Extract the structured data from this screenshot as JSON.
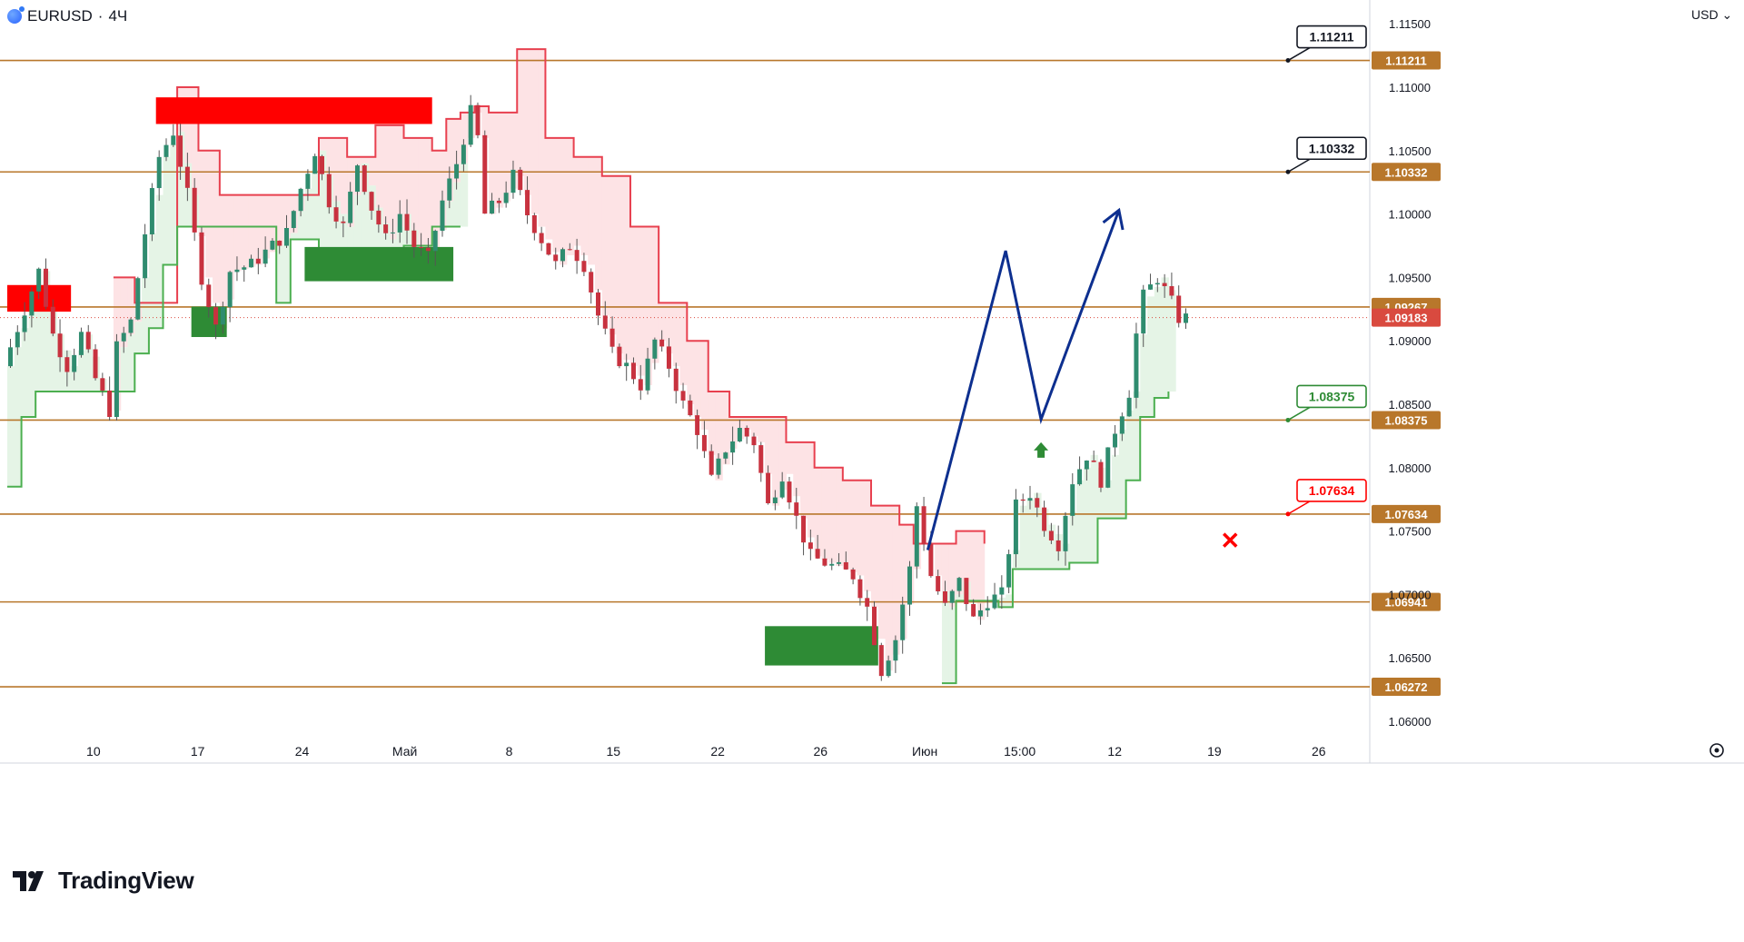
{
  "header": {
    "symbol": "EURUSD",
    "separator": "·",
    "timeframe": "4Ч"
  },
  "currency_menu": "USD",
  "logo_text": "TradingView",
  "settings_icon": "gear-icon",
  "colors": {
    "supply_zone": "#ff0000",
    "demand_zone": "#2e8b35",
    "resistance_step": "#e8404f",
    "support_step": "#4caf50",
    "level_line": "#b8772b",
    "projection": "#0d2f8f",
    "up_candle": "#26a69a",
    "down_candle": "#ef5350",
    "price_tag": "#d94a3f",
    "target_cross": "#ff0000",
    "entry_arrow": "#2e8b35"
  },
  "chart_data": {
    "type": "candlestick",
    "symbol": "EURUSD",
    "timeframe": "4Ч",
    "y_axis": {
      "currency": "USD",
      "range": [
        1.0585,
        1.1155
      ],
      "ticks": [
        1.115,
        1.11,
        1.105,
        1.1,
        1.095,
        1.09,
        1.085,
        1.08,
        1.075,
        1.07,
        1.065,
        1.06
      ],
      "tick_labels": [
        "1.11500",
        "1.11000",
        "1.10500",
        "1.10000",
        "1.09500",
        "1.09000",
        "1.08500",
        "1.08000",
        "1.07500",
        "1.07000",
        "1.06500",
        "1.06000"
      ]
    },
    "x_axis": {
      "labels": [
        "10",
        "17",
        "24",
        "Май",
        "8",
        "15",
        "22",
        "26",
        "Июн",
        "15:00",
        "12",
        "19",
        "26"
      ]
    },
    "grid": false,
    "levels": [
      {
        "value": 1.11211,
        "label": "1.11211",
        "callout": "1.11211",
        "callout_color": "#131722"
      },
      {
        "value": 1.10332,
        "label": "1.10332",
        "callout": "1.10332",
        "callout_color": "#131722"
      },
      {
        "value": 1.09267,
        "label": "1.09267"
      },
      {
        "value": 1.08375,
        "label": "1.08375",
        "callout": "1.08375",
        "callout_color": "#2e8b35"
      },
      {
        "value": 1.07634,
        "label": "1.07634",
        "callout": "1.07634",
        "callout_color": "#ff0000"
      },
      {
        "value": 1.06941,
        "label": "1.06941"
      },
      {
        "value": 1.06272,
        "label": "1.06272"
      }
    ],
    "current_price": {
      "value": 1.09183,
      "label": "1.09183"
    },
    "price_path": [
      [
        0,
        1.088
      ],
      [
        3,
        1.0925
      ],
      [
        5,
        1.0955
      ],
      [
        7,
        1.0905
      ],
      [
        9,
        1.088
      ],
      [
        11,
        1.0905
      ],
      [
        13,
        1.087
      ],
      [
        15,
        1.0845
      ],
      [
        16,
        1.0895
      ],
      [
        18,
        1.0915
      ],
      [
        20,
        1.0985
      ],
      [
        22,
        1.1045
      ],
      [
        24,
        1.1065
      ],
      [
        26,
        1.1015
      ],
      [
        28,
        1.095
      ],
      [
        30,
        1.091
      ],
      [
        32,
        1.0955
      ],
      [
        35,
        1.096
      ],
      [
        38,
        1.0975
      ],
      [
        40,
        1.0985
      ],
      [
        42,
        1.102
      ],
      [
        44,
        1.105
      ],
      [
        46,
        1.101
      ],
      [
        48,
        1.099
      ],
      [
        50,
        1.104
      ],
      [
        52,
        1.1005
      ],
      [
        54,
        1.098
      ],
      [
        56,
        1.1
      ],
      [
        58,
        1.0975
      ],
      [
        60,
        1.0965
      ],
      [
        62,
        1.101
      ],
      [
        64,
        1.104
      ],
      [
        66,
        1.108
      ],
      [
        67,
        1.106
      ],
      [
        68,
        1.1
      ],
      [
        70,
        1.101
      ],
      [
        72,
        1.103
      ],
      [
        74,
        1.1
      ],
      [
        76,
        1.098
      ],
      [
        78,
        1.096
      ],
      [
        80,
        1.0975
      ],
      [
        82,
        1.096
      ],
      [
        84,
        1.092
      ],
      [
        86,
        1.089
      ],
      [
        88,
        1.088
      ],
      [
        90,
        1.0865
      ],
      [
        92,
        1.09
      ],
      [
        94,
        1.088
      ],
      [
        96,
        1.085
      ],
      [
        98,
        1.083
      ],
      [
        100,
        1.079
      ],
      [
        102,
        1.0815
      ],
      [
        104,
        1.083
      ],
      [
        106,
        1.082
      ],
      [
        108,
        1.077
      ],
      [
        110,
        1.0795
      ],
      [
        112,
        1.076
      ],
      [
        114,
        1.073
      ],
      [
        116,
        1.0725
      ],
      [
        118,
        1.072
      ],
      [
        120,
        1.0715
      ],
      [
        122,
        1.069
      ],
      [
        124,
        1.064
      ],
      [
        126,
        1.0665
      ],
      [
        128,
        1.072
      ],
      [
        129,
        1.077
      ],
      [
        131,
        1.0715
      ],
      [
        133,
        1.069
      ],
      [
        135,
        1.071
      ],
      [
        137,
        1.068
      ],
      [
        139,
        1.0695
      ],
      [
        141,
        1.07
      ],
      [
        143,
        1.077
      ],
      [
        145,
        1.078
      ],
      [
        147,
        1.0755
      ],
      [
        149,
        1.074
      ],
      [
        151,
        1.079
      ],
      [
        153,
        1.081
      ],
      [
        155,
        1.079
      ],
      [
        157,
        1.083
      ],
      [
        159,
        1.086
      ],
      [
        160,
        1.0905
      ],
      [
        161,
        1.0935
      ],
      [
        163,
        1.095
      ],
      [
        165,
        1.093
      ],
      [
        166,
        1.0918
      ]
    ],
    "n_bars": 167,
    "resistance_trail": [
      [
        15,
        1.095
      ],
      [
        18,
        1.093
      ],
      [
        22,
        1.093
      ],
      [
        24,
        1.11
      ],
      [
        27,
        1.105
      ],
      [
        30,
        1.1015
      ],
      [
        38,
        1.1015
      ],
      [
        44,
        1.106
      ],
      [
        48,
        1.1045
      ],
      [
        52,
        1.107
      ],
      [
        56,
        1.106
      ],
      [
        60,
        1.105
      ],
      [
        62,
        1.1075
      ],
      [
        64,
        1.108
      ],
      [
        66,
        1.1085
      ],
      [
        68,
        1.108
      ],
      [
        72,
        1.113
      ],
      [
        76,
        1.106
      ],
      [
        80,
        1.1045
      ],
      [
        84,
        1.103
      ],
      [
        88,
        1.099
      ],
      [
        92,
        1.093
      ],
      [
        96,
        1.09
      ],
      [
        99,
        1.086
      ],
      [
        102,
        1.084
      ],
      [
        106,
        1.084
      ],
      [
        110,
        1.082
      ],
      [
        114,
        1.08
      ],
      [
        118,
        1.079
      ],
      [
        122,
        1.077
      ],
      [
        126,
        1.0755
      ],
      [
        128,
        1.074
      ],
      [
        132,
        1.074
      ],
      [
        134,
        1.075
      ],
      [
        138,
        1.074
      ]
    ],
    "support_trail": [
      [
        0,
        1.0785
      ],
      [
        2,
        1.084
      ],
      [
        4,
        1.086
      ],
      [
        13,
        1.086
      ],
      [
        16,
        1.086
      ],
      [
        18,
        1.089
      ],
      [
        20,
        1.091
      ],
      [
        22,
        1.096
      ],
      [
        24,
        1.099
      ],
      [
        28,
        1.099
      ],
      [
        38,
        1.093
      ],
      [
        40,
        1.098
      ],
      [
        44,
        1.096
      ],
      [
        48,
        1.0965
      ],
      [
        52,
        1.097
      ],
      [
        56,
        1.0975
      ],
      [
        60,
        1.099
      ],
      [
        64,
        1.099
      ],
      [
        132,
        1.063
      ],
      [
        134,
        1.0695
      ],
      [
        138,
        1.0695
      ],
      [
        140,
        1.069
      ],
      [
        142,
        1.072
      ],
      [
        145,
        1.072
      ],
      [
        150,
        1.0725
      ],
      [
        154,
        1.076
      ],
      [
        158,
        1.079
      ],
      [
        160,
        1.084
      ],
      [
        162,
        1.0855
      ],
      [
        164,
        1.086
      ]
    ],
    "zones": [
      {
        "kind": "supply",
        "x": [
          21,
          60
        ],
        "y": [
          1.1071,
          1.1092
        ]
      },
      {
        "kind": "supply",
        "x": [
          0,
          9
        ],
        "y": [
          1.0923,
          1.0944
        ]
      },
      {
        "kind": "demand",
        "x": [
          26,
          31
        ],
        "y": [
          1.0903,
          1.0927
        ]
      },
      {
        "kind": "demand",
        "x": [
          42,
          63
        ],
        "y": [
          1.0947,
          1.0974
        ]
      },
      {
        "kind": "demand",
        "x": [
          107,
          123
        ],
        "y": [
          1.0644,
          1.0675
        ]
      }
    ],
    "projection": [
      [
        130,
        1.0735
      ],
      [
        141,
        1.0971
      ],
      [
        146,
        1.0838
      ],
      [
        157,
        1.1003
      ]
    ],
    "entry_marker": {
      "x": 146,
      "value": 1.082
    },
    "stop_marker": {
      "x": 155,
      "value": 1.075
    }
  }
}
